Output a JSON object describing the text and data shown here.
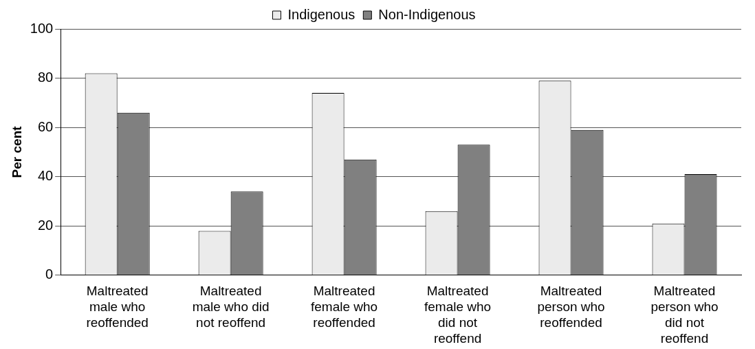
{
  "chart_data": {
    "type": "bar",
    "ylabel": "Per cent",
    "categories": [
      [
        "Maltreated",
        "male who",
        "reoffended"
      ],
      [
        "Maltreated",
        "male who did",
        "not reoffend"
      ],
      [
        "Maltreated",
        "female who",
        "reoffended"
      ],
      [
        "Maltreated",
        "female who",
        "did not",
        "reoffend"
      ],
      [
        "Maltreated",
        "person who",
        "reoffended"
      ],
      [
        "Maltreated",
        "person who",
        "did not",
        "reoffend"
      ]
    ],
    "series": [
      {
        "name": "Indigenous",
        "color": "#ebebeb",
        "values": [
          82,
          18,
          74,
          26,
          79,
          21
        ]
      },
      {
        "name": "Non-Indigenous",
        "color": "#808080",
        "values": [
          66,
          34,
          47,
          53,
          59,
          41
        ]
      }
    ],
    "ylim": [
      0,
      100
    ],
    "yticks": [
      0,
      20,
      40,
      60,
      80,
      100
    ],
    "grid": "y",
    "legend": "top"
  }
}
